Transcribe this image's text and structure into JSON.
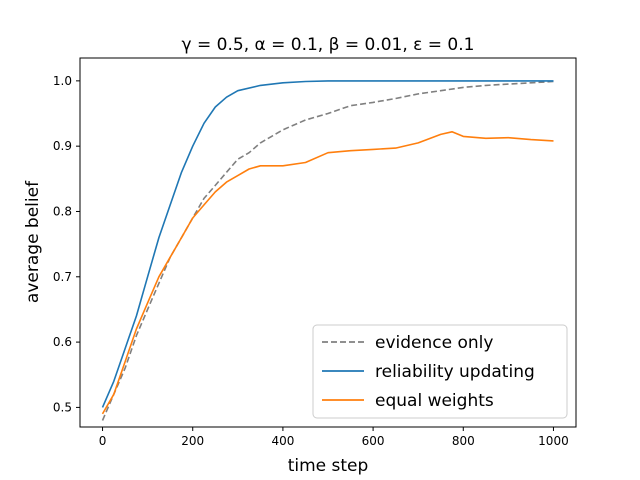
{
  "chart_data": {
    "type": "line",
    "title": "γ = 0.5, α = 0.1, β = 0.01, ε = 0.1",
    "xlabel": "time step",
    "ylabel": "average belief",
    "xlim": [
      -50,
      1050
    ],
    "ylim": [
      0.47,
      1.035
    ],
    "xticks": [
      0,
      200,
      400,
      600,
      800,
      1000
    ],
    "yticks": [
      0.5,
      0.6,
      0.7,
      0.8,
      0.9,
      1.0
    ],
    "xtick_labels": [
      "0",
      "200",
      "400",
      "600",
      "800",
      "1000"
    ],
    "ytick_labels": [
      "0.5",
      "0.6",
      "0.7",
      "0.8",
      "0.9",
      "1.0"
    ],
    "grid": false,
    "legend_position": "bottom-right",
    "series": [
      {
        "name": "evidence only",
        "color": "#808080",
        "style": "dashed",
        "points": [
          [
            0,
            0.48
          ],
          [
            25,
            0.52
          ],
          [
            50,
            0.56
          ],
          [
            75,
            0.61
          ],
          [
            100,
            0.65
          ],
          [
            125,
            0.69
          ],
          [
            150,
            0.73
          ],
          [
            175,
            0.76
          ],
          [
            200,
            0.79
          ],
          [
            225,
            0.82
          ],
          [
            250,
            0.84
          ],
          [
            275,
            0.86
          ],
          [
            300,
            0.88
          ],
          [
            325,
            0.89
          ],
          [
            350,
            0.905
          ],
          [
            375,
            0.915
          ],
          [
            400,
            0.925
          ],
          [
            450,
            0.94
          ],
          [
            500,
            0.95
          ],
          [
            550,
            0.962
          ],
          [
            600,
            0.967
          ],
          [
            650,
            0.973
          ],
          [
            700,
            0.98
          ],
          [
            750,
            0.985
          ],
          [
            800,
            0.99
          ],
          [
            850,
            0.993
          ],
          [
            900,
            0.995
          ],
          [
            950,
            0.997
          ],
          [
            1000,
            0.999
          ]
        ]
      },
      {
        "name": "reliability updating",
        "color": "#1f77b4",
        "style": "solid",
        "points": [
          [
            0,
            0.5
          ],
          [
            25,
            0.54
          ],
          [
            50,
            0.59
          ],
          [
            75,
            0.64
          ],
          [
            100,
            0.7
          ],
          [
            125,
            0.76
          ],
          [
            150,
            0.81
          ],
          [
            175,
            0.86
          ],
          [
            200,
            0.9
          ],
          [
            225,
            0.935
          ],
          [
            250,
            0.96
          ],
          [
            275,
            0.975
          ],
          [
            300,
            0.985
          ],
          [
            350,
            0.993
          ],
          [
            400,
            0.997
          ],
          [
            450,
            0.999
          ],
          [
            500,
            1.0
          ],
          [
            600,
            1.0
          ],
          [
            700,
            1.0
          ],
          [
            800,
            1.0
          ],
          [
            900,
            1.0
          ],
          [
            1000,
            1.0
          ]
        ]
      },
      {
        "name": "equal weights",
        "color": "#ff7f0e",
        "style": "solid",
        "points": [
          [
            0,
            0.49
          ],
          [
            25,
            0.52
          ],
          [
            50,
            0.57
          ],
          [
            75,
            0.62
          ],
          [
            100,
            0.66
          ],
          [
            125,
            0.7
          ],
          [
            150,
            0.73
          ],
          [
            175,
            0.76
          ],
          [
            200,
            0.79
          ],
          [
            225,
            0.81
          ],
          [
            250,
            0.83
          ],
          [
            275,
            0.845
          ],
          [
            300,
            0.855
          ],
          [
            325,
            0.865
          ],
          [
            350,
            0.87
          ],
          [
            375,
            0.87
          ],
          [
            400,
            0.87
          ],
          [
            450,
            0.875
          ],
          [
            500,
            0.89
          ],
          [
            550,
            0.893
          ],
          [
            600,
            0.895
          ],
          [
            650,
            0.897
          ],
          [
            700,
            0.905
          ],
          [
            750,
            0.918
          ],
          [
            775,
            0.922
          ],
          [
            800,
            0.915
          ],
          [
            850,
            0.912
          ],
          [
            900,
            0.913
          ],
          [
            950,
            0.91
          ],
          [
            1000,
            0.908
          ]
        ]
      }
    ]
  }
}
